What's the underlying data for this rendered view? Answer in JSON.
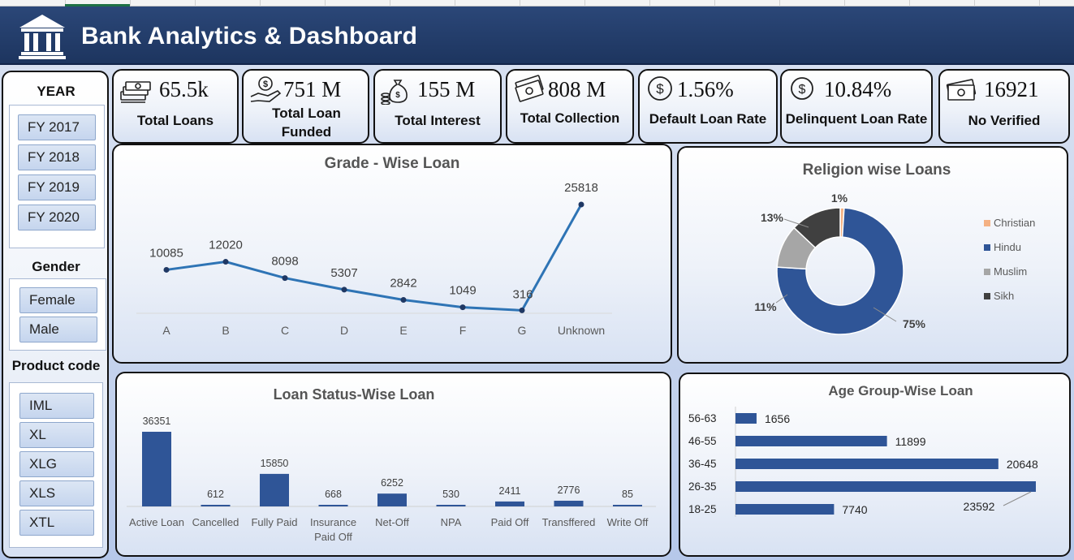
{
  "header": {
    "title": "Bank Analytics & Dashboard"
  },
  "kpis": [
    {
      "value": "65.5k",
      "label": "Total Loans",
      "icon": "money-stack-icon"
    },
    {
      "value": "751 M",
      "label": "Total Loan Funded",
      "icon": "hand-dollar-icon"
    },
    {
      "value": "155 M",
      "label": "Total Interest",
      "icon": "money-bag-coins-icon"
    },
    {
      "value": "808 M",
      "label": "Total Collection",
      "icon": "banknotes-icon"
    },
    {
      "value": "1.56%",
      "label": "Default Loan Rate",
      "icon": "dollar-circle-icon"
    },
    {
      "value": "10.84%",
      "label": "Delinquent Loan Rate",
      "icon": "dollar-circle-icon"
    },
    {
      "value": "16921",
      "label": "No Verified",
      "icon": "cash-icon"
    }
  ],
  "filters": {
    "year": {
      "label": "YEAR",
      "items": [
        "FY 2017",
        "FY 2018",
        "FY 2019",
        "FY 2020"
      ]
    },
    "gender": {
      "label": "Gender",
      "items": [
        "Female",
        "Male"
      ]
    },
    "product": {
      "label": "Product code",
      "items": [
        "IML",
        "XL",
        "XLG",
        "XLS",
        "XTL"
      ]
    }
  },
  "colors": {
    "header": "#1d355f",
    "series": "#2e74b5",
    "bar": "#2f5597",
    "hindu": "#2f5597",
    "christian": "#f4b183",
    "muslim": "#a6a6a6",
    "sikh": "#404040"
  },
  "chart_data": [
    {
      "type": "line",
      "title": "Grade - Wise Loan",
      "categories": [
        "A",
        "B",
        "C",
        "D",
        "E",
        "F",
        "G",
        "Unknown"
      ],
      "values": [
        10085,
        12020,
        8098,
        5307,
        2842,
        1049,
        316,
        25818
      ]
    },
    {
      "type": "pie",
      "title": "Religion wise Loans",
      "categories": [
        "Christian",
        "Hindu",
        "Muslim",
        "Sikh"
      ],
      "values": [
        1,
        75,
        11,
        13
      ],
      "labels": [
        "1%",
        "75%",
        "11%",
        "13%"
      ],
      "legend": "right"
    },
    {
      "type": "bar",
      "title": "Loan Status-Wise Loan",
      "categories": [
        "Active Loan",
        "Cancelled",
        "Fully Paid",
        "Insurance Paid Off",
        "Net-Off",
        "NPA",
        "Paid Off",
        "Transffered",
        "Write Off"
      ],
      "values": [
        36351,
        612,
        15850,
        668,
        6252,
        530,
        2411,
        2776,
        85
      ]
    },
    {
      "type": "bar",
      "orientation": "horizontal",
      "title": "Age Group-Wise Loan",
      "categories": [
        "56-63",
        "46-55",
        "36-45",
        "26-35",
        "18-25"
      ],
      "values": [
        1656,
        11899,
        20648,
        23592,
        7740
      ]
    }
  ]
}
